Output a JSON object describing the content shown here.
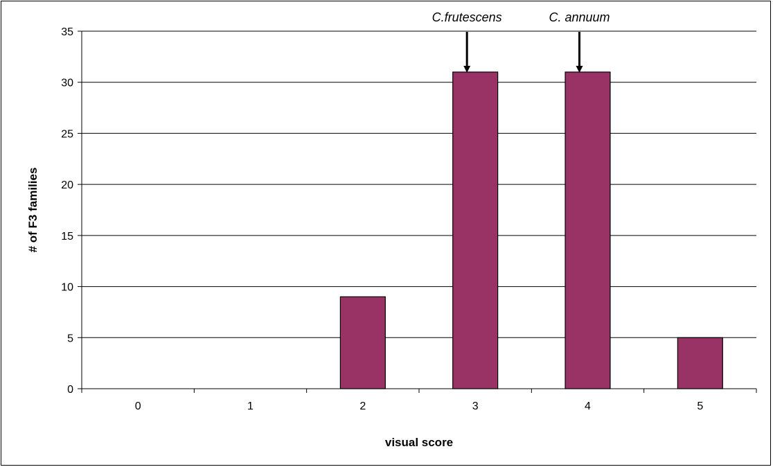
{
  "chart_data": {
    "type": "bar",
    "categories": [
      "0",
      "1",
      "2",
      "3",
      "4",
      "5"
    ],
    "values": [
      0,
      0,
      9,
      31,
      31,
      5
    ],
    "title": "",
    "xlabel": "visual score",
    "ylabel": "# of F3 families",
    "ylim": [
      0,
      35
    ],
    "yticks": [
      0,
      5,
      10,
      15,
      20,
      25,
      30,
      35
    ],
    "grid": true,
    "legend": "none",
    "bar_color": "#993366",
    "annotations": [
      {
        "text": "C.frutescens",
        "category": "3"
      },
      {
        "text": "C. annuum",
        "category": "4"
      }
    ]
  }
}
